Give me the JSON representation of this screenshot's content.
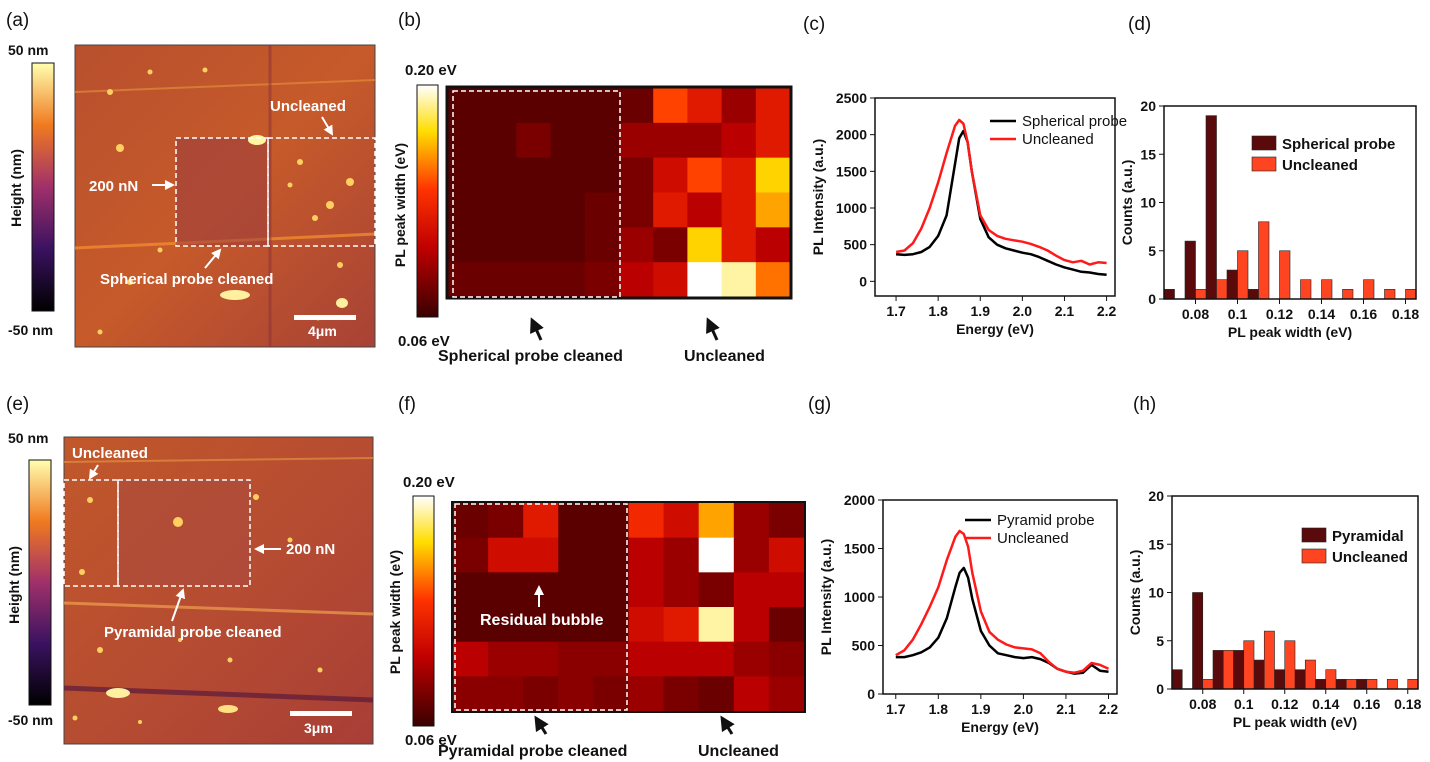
{
  "panel_labels": [
    "(a)",
    "(b)",
    "(c)",
    "(d)",
    "(e)",
    "(f)",
    "(g)",
    "(h)"
  ],
  "afm_top": {
    "colorbar_title": "Height (nm)",
    "cb_max": "50 nm",
    "cb_min": "-50 nm",
    "label_uncleaned": "Uncleaned",
    "label_force": "200 nN",
    "label_cleaned": "Spherical probe cleaned",
    "scale_bar": "4μm"
  },
  "afm_bottom": {
    "colorbar_title": "Height (nm)",
    "cb_max": "50 nm",
    "cb_min": "-50 nm",
    "label_uncleaned": "Uncleaned",
    "label_force": "200 nN",
    "label_cleaned": "Pyramidal probe cleaned",
    "scale_bar": "3μm"
  },
  "map_top": {
    "colorbar_title": "PL peak width (eV)",
    "cb_max": "0.20 eV",
    "cb_min": "0.06 eV",
    "label_left": "Spherical probe cleaned",
    "label_right": "Uncleaned"
  },
  "map_bottom": {
    "colorbar_title": "PL peak width (eV)",
    "cb_max": "0.20 eV",
    "cb_min": "0.06 eV",
    "label_left": "Pyramidal probe cleaned",
    "label_right": "Uncleaned",
    "label_bubble": "Residual bubble"
  },
  "colors": {
    "probe": "#000000",
    "uncleaned": "#ff1a1a",
    "hist_probe": "#5a0a0a",
    "hist_unclean": "#ff4422",
    "annotation": "#ffffff"
  },
  "chart_data": [
    {
      "id": "b",
      "type": "heatmap",
      "title": "",
      "colorbar_label": "PL peak width (eV)",
      "vmin": 0.06,
      "vmax": 0.2,
      "rows": 6,
      "cols": 10,
      "values": [
        [
          0.07,
          0.07,
          0.07,
          0.07,
          0.07,
          0.075,
          0.14,
          0.12,
          0.09,
          0.12
        ],
        [
          0.07,
          0.07,
          0.08,
          0.07,
          0.07,
          0.09,
          0.09,
          0.09,
          0.1,
          0.12
        ],
        [
          0.07,
          0.07,
          0.07,
          0.07,
          0.07,
          0.08,
          0.11,
          0.14,
          0.12,
          0.17
        ],
        [
          0.07,
          0.07,
          0.07,
          0.07,
          0.075,
          0.08,
          0.12,
          0.1,
          0.12,
          0.16
        ],
        [
          0.07,
          0.07,
          0.07,
          0.07,
          0.075,
          0.09,
          0.08,
          0.17,
          0.12,
          0.1
        ],
        [
          0.075,
          0.075,
          0.075,
          0.075,
          0.08,
          0.1,
          0.11,
          0.2,
          0.19,
          0.15
        ]
      ]
    },
    {
      "id": "c",
      "type": "line",
      "xlabel": "Energy (eV)",
      "ylabel": "PL Intensity (a.u.)",
      "xlim": [
        1.65,
        2.22
      ],
      "ylim": [
        -200,
        2500
      ],
      "xticks": [
        "1.7",
        "1.8",
        "1.9",
        "2.0",
        "2.1",
        "2.2"
      ],
      "yticks": [
        "0",
        "500",
        "1000",
        "1500",
        "2000",
        "2500"
      ],
      "series": [
        {
          "name": "Spherical probe",
          "color": "#000000",
          "x": [
            1.7,
            1.72,
            1.74,
            1.76,
            1.78,
            1.8,
            1.82,
            1.84,
            1.85,
            1.86,
            1.87,
            1.88,
            1.9,
            1.92,
            1.94,
            1.96,
            1.98,
            2.0,
            2.02,
            2.04,
            2.06,
            2.08,
            2.1,
            2.12,
            2.14,
            2.16,
            2.18,
            2.2
          ],
          "y": [
            370,
            360,
            370,
            400,
            470,
            620,
            900,
            1600,
            1950,
            2050,
            1900,
            1500,
            850,
            600,
            500,
            450,
            420,
            390,
            370,
            330,
            280,
            230,
            190,
            160,
            130,
            120,
            100,
            90
          ]
        },
        {
          "name": "Uncleaned",
          "color": "#ff1a1a",
          "x": [
            1.7,
            1.72,
            1.74,
            1.76,
            1.78,
            1.8,
            1.82,
            1.84,
            1.85,
            1.86,
            1.87,
            1.88,
            1.9,
            1.92,
            1.94,
            1.96,
            1.98,
            2.0,
            2.02,
            2.04,
            2.06,
            2.08,
            2.1,
            2.12,
            2.14,
            2.16,
            2.18,
            2.2
          ],
          "y": [
            400,
            420,
            520,
            720,
            1000,
            1350,
            1750,
            2120,
            2200,
            2150,
            1900,
            1500,
            900,
            700,
            620,
            580,
            560,
            540,
            510,
            470,
            420,
            350,
            290,
            260,
            280,
            230,
            260,
            250
          ]
        }
      ]
    },
    {
      "id": "d",
      "type": "bar",
      "xlabel": "PL peak width (eV)",
      "ylabel": "Counts (a.u.)",
      "xlim": [
        0.065,
        0.185
      ],
      "ylim": [
        0,
        20
      ],
      "bin_width": 0.005,
      "xticks": [
        "0.08",
        "0.1",
        "0.12",
        "0.14",
        "0.16",
        "0.18"
      ],
      "yticks": [
        "0",
        "5",
        "10",
        "15",
        "20"
      ],
      "series": [
        {
          "name": "Spherical probe",
          "color": "#5a0a0a",
          "x": [
            0.0675,
            0.0775,
            0.0875,
            0.0975,
            0.1075
          ],
          "values": [
            1,
            6,
            19,
            3,
            1
          ]
        },
        {
          "name": "Uncleaned",
          "color": "#ff4422",
          "x": [
            0.0825,
            0.0925,
            0.1025,
            0.1125,
            0.1225,
            0.1325,
            0.1425,
            0.1525,
            0.1625,
            0.1725,
            0.1825
          ],
          "values": [
            1,
            2,
            5,
            8,
            5,
            2,
            2,
            1,
            2,
            1,
            1
          ]
        }
      ]
    },
    {
      "id": "f",
      "type": "heatmap",
      "title": "",
      "colorbar_label": "PL peak width (eV)",
      "vmin": 0.06,
      "vmax": 0.2,
      "rows": 6,
      "cols": 10,
      "values": [
        [
          0.075,
          0.08,
          0.12,
          0.07,
          0.07,
          0.13,
          0.11,
          0.16,
          0.09,
          0.08
        ],
        [
          0.08,
          0.11,
          0.11,
          0.07,
          0.07,
          0.1,
          0.09,
          0.2,
          0.09,
          0.11
        ],
        [
          0.07,
          0.07,
          0.07,
          0.07,
          0.07,
          0.1,
          0.09,
          0.08,
          0.1,
          0.1
        ],
        [
          0.07,
          0.07,
          0.07,
          0.07,
          0.07,
          0.11,
          0.12,
          0.19,
          0.1,
          0.075
        ],
        [
          0.1,
          0.09,
          0.09,
          0.085,
          0.085,
          0.1,
          0.1,
          0.1,
          0.09,
          0.085
        ],
        [
          0.085,
          0.085,
          0.08,
          0.085,
          0.08,
          0.09,
          0.08,
          0.075,
          0.1,
          0.09
        ]
      ]
    },
    {
      "id": "g",
      "type": "line",
      "xlabel": "Energy (eV)",
      "ylabel": "PL Intensity (a.u.)",
      "xlim": [
        1.67,
        2.22
      ],
      "ylim": [
        0,
        2000
      ],
      "xticks": [
        "1.7",
        "1.8",
        "1.9",
        "2.0",
        "2.1",
        "2.2"
      ],
      "yticks": [
        "0",
        "500",
        "1000",
        "1500",
        "2000"
      ],
      "series": [
        {
          "name": "Pyramid probe",
          "color": "#000000",
          "x": [
            1.7,
            1.72,
            1.74,
            1.76,
            1.78,
            1.8,
            1.82,
            1.84,
            1.85,
            1.86,
            1.87,
            1.88,
            1.9,
            1.92,
            1.94,
            1.96,
            1.98,
            2.0,
            2.02,
            2.04,
            2.06,
            2.08,
            2.1,
            2.12,
            2.14,
            2.16,
            2.18,
            2.2
          ],
          "y": [
            380,
            380,
            400,
            430,
            480,
            580,
            780,
            1100,
            1250,
            1300,
            1200,
            980,
            650,
            500,
            420,
            400,
            380,
            370,
            380,
            360,
            320,
            260,
            230,
            210,
            220,
            300,
            240,
            230
          ]
        },
        {
          "name": "Uncleaned",
          "color": "#ff1a1a",
          "x": [
            1.7,
            1.72,
            1.74,
            1.76,
            1.78,
            1.8,
            1.82,
            1.84,
            1.85,
            1.86,
            1.87,
            1.88,
            1.9,
            1.92,
            1.94,
            1.96,
            1.98,
            2.0,
            2.02,
            2.04,
            2.06,
            2.08,
            2.1,
            2.12,
            2.14,
            2.16,
            2.18,
            2.2
          ],
          "y": [
            400,
            450,
            560,
            720,
            900,
            1100,
            1380,
            1620,
            1680,
            1650,
            1520,
            1250,
            850,
            640,
            560,
            510,
            480,
            470,
            460,
            420,
            330,
            260,
            230,
            220,
            240,
            320,
            300,
            260
          ]
        }
      ]
    },
    {
      "id": "h",
      "type": "bar",
      "xlabel": "PL peak width (eV)",
      "ylabel": "Counts (a.u.)",
      "xlim": [
        0.065,
        0.185
      ],
      "ylim": [
        0,
        20
      ],
      "bin_width": 0.005,
      "xticks": [
        "0.08",
        "0.1",
        "0.12",
        "0.14",
        "0.16",
        "0.18"
      ],
      "yticks": [
        "0",
        "5",
        "10",
        "15",
        "20"
      ],
      "series": [
        {
          "name": "Pyramidal",
          "color": "#5a0a0a",
          "x": [
            0.0675,
            0.0775,
            0.0875,
            0.0975,
            0.1075,
            0.1175,
            0.1275,
            0.1375,
            0.1475,
            0.1575
          ],
          "values": [
            2,
            10,
            4,
            4,
            3,
            2,
            2,
            1,
            1,
            1
          ]
        },
        {
          "name": "Uncleaned",
          "color": "#ff4422",
          "x": [
            0.0825,
            0.0925,
            0.1025,
            0.1125,
            0.1225,
            0.1325,
            0.1425,
            0.1525,
            0.1625,
            0.1725,
            0.1825
          ],
          "values": [
            1,
            4,
            5,
            6,
            5,
            3,
            2,
            1,
            1,
            1,
            1
          ]
        }
      ]
    }
  ]
}
